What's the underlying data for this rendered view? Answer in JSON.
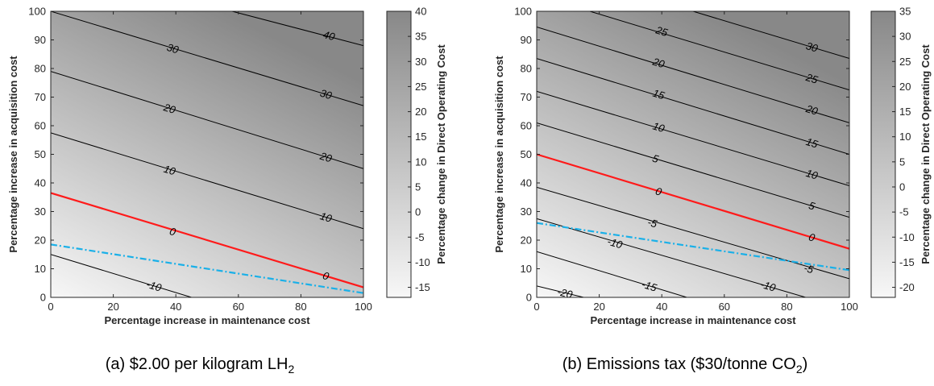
{
  "chart_data": [
    {
      "type": "contour",
      "caption": "(a) $2.00 per kilogram LH",
      "caption_sub": "2",
      "caption_tail": "",
      "xlabel": "Percentage increase in maintenance cost",
      "ylabel": "Percentage increase in acquisition cost",
      "colorbar_label": "Percentage change in Direct Operating Cost",
      "xlim": [
        0,
        100
      ],
      "ylim": [
        0,
        100
      ],
      "xticks": [
        0,
        20,
        40,
        60,
        80,
        100
      ],
      "yticks": [
        0,
        10,
        20,
        30,
        40,
        50,
        60,
        70,
        80,
        90,
        100
      ],
      "colorbar_range": [
        -17,
        40
      ],
      "colorbar_ticks": [
        -15,
        -10,
        -5,
        0,
        5,
        10,
        15,
        20,
        25,
        30,
        35,
        40
      ],
      "colormap": {
        "low": "#f7f7f7",
        "high": "#888888"
      },
      "contours": [
        {
          "level": -10,
          "points": [
            [
              0,
              15
            ],
            [
              45,
              0
            ]
          ],
          "label": "-10",
          "label_at": [
            33,
            4
          ]
        },
        {
          "level": 10,
          "points": [
            [
              0,
              57.5
            ],
            [
              100,
              24
            ]
          ],
          "label": "10",
          "label_at": [
            38,
            44.5
          ]
        },
        {
          "level": 10,
          "points": [
            [
              0,
              57.5
            ],
            [
              100,
              24
            ]
          ],
          "label": "10",
          "label_at": [
            88,
            28
          ]
        },
        {
          "level": 20,
          "points": [
            [
              0,
              79
            ],
            [
              100,
              45
            ]
          ],
          "label": "20",
          "label_at": [
            38,
            66
          ]
        },
        {
          "level": 20,
          "points": [
            [
              0,
              79
            ],
            [
              100,
              45
            ]
          ],
          "label": "20",
          "label_at": [
            88,
            49
          ]
        },
        {
          "level": 30,
          "points": [
            [
              0,
              100
            ],
            [
              100,
              67
            ]
          ],
          "label": "30",
          "label_at": [
            39,
            87
          ]
        },
        {
          "level": 30,
          "points": [
            [
              0,
              100
            ],
            [
              100,
              67
            ]
          ],
          "label": "30",
          "label_at": [
            88,
            71
          ]
        },
        {
          "level": 40,
          "points": [
            [
              58,
              100
            ],
            [
              100,
              88
            ]
          ],
          "label": "40",
          "label_at": [
            89,
            91.5
          ]
        }
      ],
      "zero_line": {
        "points": [
          [
            0,
            36.5
          ],
          [
            100,
            3.5
          ]
        ],
        "color": "#ff1a1a",
        "labels": [
          {
            "text": "0",
            "at": [
              39,
              23
            ]
          },
          {
            "text": "0",
            "at": [
              88,
              7.5
            ]
          }
        ]
      },
      "breakeven_line": {
        "points": [
          [
            0,
            18.5
          ],
          [
            100,
            1.5
          ]
        ],
        "color": "#1ab0e8"
      }
    },
    {
      "type": "contour",
      "caption": "(b) Emissions tax ($30/tonne CO",
      "caption_sub": "2",
      "caption_tail": ")",
      "xlabel": "Percentage increase in maintenance cost",
      "ylabel": "Percentage increase in acquisition cost",
      "colorbar_label": "Percentage change in Direct Operating Cost",
      "xlim": [
        0,
        100
      ],
      "ylim": [
        0,
        100
      ],
      "xticks": [
        0,
        20,
        40,
        60,
        80,
        100
      ],
      "yticks": [
        0,
        10,
        20,
        30,
        40,
        50,
        60,
        70,
        80,
        90,
        100
      ],
      "colorbar_range": [
        -22,
        35
      ],
      "colorbar_ticks": [
        -20,
        -15,
        -10,
        -5,
        0,
        5,
        10,
        15,
        20,
        25,
        30,
        35
      ],
      "colormap": {
        "low": "#f7f7f7",
        "high": "#888888"
      },
      "contours": [
        {
          "level": -20,
          "points": [
            [
              0,
              4
            ],
            [
              15,
              0
            ]
          ],
          "label": "-20",
          "label_at": [
            9,
            1.5
          ]
        },
        {
          "level": -15,
          "points": [
            [
              0,
              16
            ],
            [
              48,
              0
            ]
          ],
          "label": "-15",
          "label_at": [
            36,
            4
          ]
        },
        {
          "level": -10,
          "points": [
            [
              0,
              27.5
            ],
            [
              86,
              0
            ]
          ],
          "label": "-10",
          "label_at": [
            25,
            19
          ]
        },
        {
          "level": -10,
          "points": [
            [
              0,
              27.5
            ],
            [
              86,
              0
            ]
          ],
          "label": "-10",
          "label_at": [
            74,
            4
          ]
        },
        {
          "level": -5,
          "points": [
            [
              0,
              38.5
            ],
            [
              100,
              6.5
            ]
          ],
          "label": "-5",
          "label_at": [
            37,
            26
          ]
        },
        {
          "level": -5,
          "points": [
            [
              0,
              38.5
            ],
            [
              100,
              6.5
            ]
          ],
          "label": "-5",
          "label_at": [
            87,
            10
          ]
        },
        {
          "level": 5,
          "points": [
            [
              0,
              61
            ],
            [
              100,
              28
            ]
          ],
          "label": "5",
          "label_at": [
            38,
            48.5
          ]
        },
        {
          "level": 5,
          "points": [
            [
              0,
              61
            ],
            [
              100,
              28
            ]
          ],
          "label": "5",
          "label_at": [
            88,
            32
          ]
        },
        {
          "level": 10,
          "points": [
            [
              0,
              72
            ],
            [
              100,
              39
            ]
          ],
          "label": "10",
          "label_at": [
            39,
            59.5
          ]
        },
        {
          "level": 10,
          "points": [
            [
              0,
              72
            ],
            [
              100,
              39
            ]
          ],
          "label": "10",
          "label_at": [
            88,
            43
          ]
        },
        {
          "level": 15,
          "points": [
            [
              0,
              83.5
            ],
            [
              100,
              50
            ]
          ],
          "label": "15",
          "label_at": [
            39,
            71
          ]
        },
        {
          "level": 15,
          "points": [
            [
              0,
              83.5
            ],
            [
              100,
              50
            ]
          ],
          "label": "15",
          "label_at": [
            88,
            54
          ]
        },
        {
          "level": 20,
          "points": [
            [
              0,
              94.5
            ],
            [
              100,
              61
            ]
          ],
          "label": "20",
          "label_at": [
            39,
            82
          ]
        },
        {
          "level": 20,
          "points": [
            [
              0,
              94.5
            ],
            [
              100,
              61
            ]
          ],
          "label": "20",
          "label_at": [
            88,
            65.5
          ]
        },
        {
          "level": 25,
          "points": [
            [
              17,
              100
            ],
            [
              100,
              72.5
            ]
          ],
          "label": "25",
          "label_at": [
            40,
            93
          ]
        },
        {
          "level": 25,
          "points": [
            [
              17,
              100
            ],
            [
              100,
              72.5
            ]
          ],
          "label": "25",
          "label_at": [
            88,
            76.5
          ]
        },
        {
          "level": 30,
          "points": [
            [
              50,
              100
            ],
            [
              100,
              83.5
            ]
          ],
          "label": "30",
          "label_at": [
            88,
            87.5
          ]
        }
      ],
      "zero_line": {
        "points": [
          [
            0,
            50
          ],
          [
            100,
            17
          ]
        ],
        "color": "#ff1a1a",
        "labels": [
          {
            "text": "0",
            "at": [
              39,
              37
            ]
          },
          {
            "text": "0",
            "at": [
              88,
              21
            ]
          }
        ]
      },
      "breakeven_line": {
        "points": [
          [
            0,
            26
          ],
          [
            100,
            9.5
          ]
        ],
        "color": "#1ab0e8"
      }
    }
  ]
}
